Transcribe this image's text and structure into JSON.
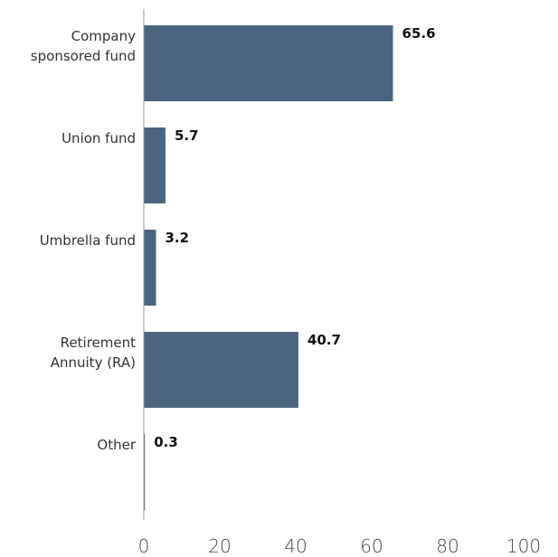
{
  "chart_data": {
    "type": "bar",
    "orientation": "horizontal",
    "categories": [
      "Company sponsored fund",
      "Union fund",
      "Umbrella fund",
      "Retirement Annuity (RA)",
      "Other"
    ],
    "values": [
      65.6,
      5.7,
      3.2,
      40.7,
      0.3
    ],
    "color": "#4a6580",
    "xlim": [
      0,
      100
    ],
    "xticks": [
      0,
      20,
      40,
      60,
      80,
      100
    ],
    "grid": false
  }
}
